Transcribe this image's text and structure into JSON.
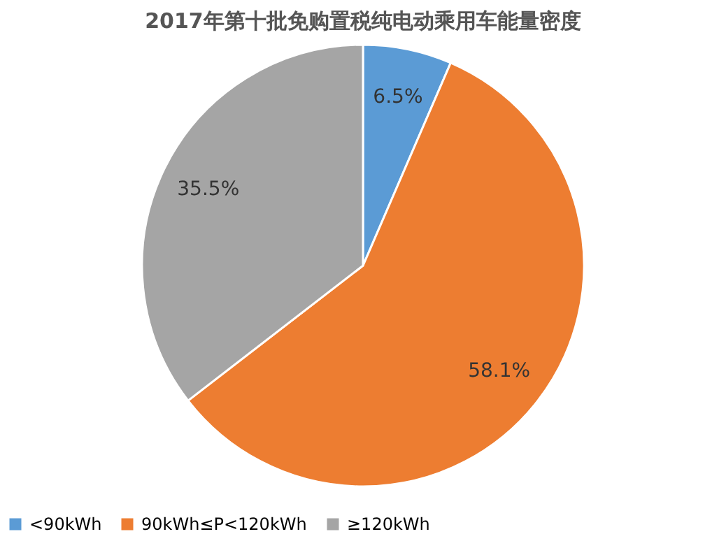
{
  "chart_data": {
    "type": "pie",
    "title": "2017年第十批免购置税纯电动乘用车能量密度",
    "categories": [
      "<90kWh",
      "90kWh≤P<120kWh",
      "≥120kWh"
    ],
    "values": [
      6.5,
      58.1,
      35.5
    ],
    "colors": [
      "#5b9bd5",
      "#ed7d31",
      "#a5a5a5"
    ],
    "value_labels": [
      "6.5%",
      "58.1%",
      "35.5%"
    ],
    "legend": "bottom"
  }
}
